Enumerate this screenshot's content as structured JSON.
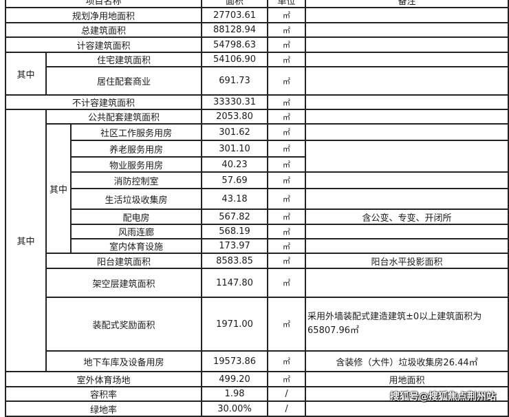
{
  "header": {
    "name": "项目名称",
    "area": "面积",
    "unit": "单位",
    "note": "备注"
  },
  "label_qizhong": "其中",
  "rows": {
    "r1": {
      "name": "规划净用地面积",
      "area": "27703.61",
      "unit": "㎡"
    },
    "r2": {
      "name": "总建筑面积",
      "area": "88128.94",
      "unit": "㎡"
    },
    "r3": {
      "name": "计容建筑面积",
      "area": "54798.63",
      "unit": "㎡"
    },
    "r4": {
      "name": "住宅建筑面积",
      "area": "54106.90",
      "unit": "㎡"
    },
    "r5": {
      "name": "居住配套商业",
      "area": "691.73",
      "unit": "㎡"
    },
    "r6": {
      "name": "不计容建筑面积",
      "area": "33330.31",
      "unit": "㎡"
    },
    "r7": {
      "name": "公共配套建筑面积",
      "area": "2053.80",
      "unit": "㎡"
    },
    "r8": {
      "name": "社区工作服务用房",
      "area": "301.62",
      "unit": "㎡"
    },
    "r9": {
      "name": "养老服务用房",
      "area": "301.10",
      "unit": "㎡"
    },
    "r10": {
      "name": "物业服务用房",
      "area": "40.23",
      "unit": "㎡"
    },
    "r11": {
      "name": "消防控制室",
      "area": "57.69",
      "unit": "㎡"
    },
    "r12": {
      "name": "生活垃圾收集房",
      "area": "43.18",
      "unit": "㎡"
    },
    "r13": {
      "name": "配电房",
      "area": "567.82",
      "unit": "㎡",
      "note": "含公变、专变、开闭所"
    },
    "r14": {
      "name": "风雨连廊",
      "area": "568.19",
      "unit": "㎡"
    },
    "r15": {
      "name": "室内体育设施",
      "area": "173.97",
      "unit": "㎡"
    },
    "r16": {
      "name": "阳台建筑面积",
      "area": "8583.85",
      "unit": "㎡",
      "note": "阳台水平投影面积"
    },
    "r17": {
      "name": "架空层建筑面积",
      "area": "1147.80",
      "unit": "㎡"
    },
    "r18": {
      "name": "装配式奖励面积",
      "area": "1971.00",
      "unit": "㎡",
      "note": "采用外墙装配式建造建筑±0以上建筑面积为65807.96㎡"
    },
    "r19": {
      "name": "地下车库及设备用房",
      "area": "19573.86",
      "unit": "㎡",
      "note": "含装修（大件）垃圾收集房26.44㎡"
    },
    "r20": {
      "name": "室外体育场地",
      "area": "499.20",
      "unit": "㎡",
      "note": "用地面积"
    },
    "r21": {
      "name": "容积率",
      "area": "1.98",
      "unit": "/"
    },
    "r22": {
      "name": "绿地率",
      "area": "30.00%",
      "unit": "/"
    }
  },
  "watermark": "搜狐号@搜狐焦点荆州站"
}
